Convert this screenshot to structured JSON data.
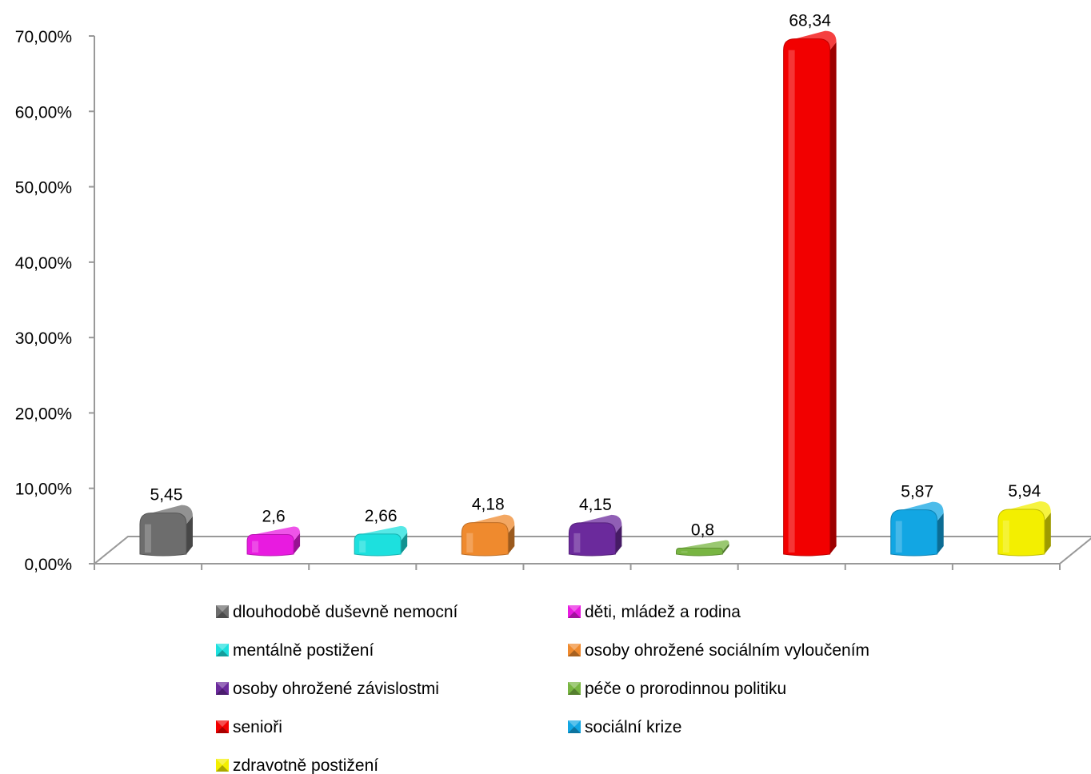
{
  "chart_data": {
    "type": "bar",
    "categories": [
      "dlouhodobě duševně nemocní",
      "děti, mládež a rodina",
      "mentálně postižení",
      "osoby ohrožené sociálním vyloučením",
      "osoby ohrožené závislostmi",
      "péče o prorodinnou politiku",
      "senioři",
      "sociální krize",
      "zdravotně postižení"
    ],
    "values": [
      5.45,
      2.6,
      2.66,
      4.18,
      4.15,
      0.8,
      68.34,
      5.87,
      5.94
    ],
    "data_labels": [
      "5,45",
      "2,6",
      "2,66",
      "4,18",
      "4,15",
      "0,8",
      "68,34",
      "5,87",
      "5,94"
    ],
    "colors": [
      "#6d6d6d",
      "#e81be0",
      "#1de0de",
      "#ef8a2e",
      "#6b2a9c",
      "#78b542",
      "#f20000",
      "#12a6e3",
      "#f3ef00"
    ],
    "ylim": [
      0,
      70
    ],
    "y_ticks": [
      "0,00%",
      "10,00%",
      "20,00%",
      "30,00%",
      "40,00%",
      "50,00%",
      "60,00%",
      "70,00%"
    ],
    "grid": false,
    "legend_position": "bottom",
    "title": "",
    "xlabel": "",
    "ylabel": ""
  }
}
